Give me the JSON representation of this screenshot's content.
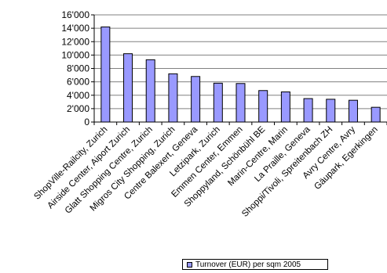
{
  "chart_data": {
    "type": "bar",
    "categories": [
      "ShopVille-Railcity, Zurich",
      "Airside Center, Aiport Zurich",
      "Glatt Shopping Centre, Zurich",
      "Migros City Shopping, Zurich",
      "Centre Balexert, Geneva",
      "Letzipark, Zurich",
      "Emmen Center, Emmen",
      "Shoppyland, Schönbühl BE",
      "Marin-Centre, Marin",
      "La Praille, Geneva",
      "Shoppi/Tivoli, Spreitenbach ZH",
      "Avry Centre, Avry",
      "Gäupark, Egerkingen"
    ],
    "series": [
      {
        "name": "Turnover (EUR) per sqm 2005",
        "values": [
          14200,
          10200,
          9300,
          7200,
          6800,
          5800,
          5750,
          4700,
          4500,
          3500,
          3400,
          3250,
          2200
        ]
      }
    ],
    "yticks": [
      "0",
      "2'000",
      "4'000",
      "6'000",
      "8'000",
      "10'000",
      "12'000",
      "14'000",
      "16'000"
    ],
    "ylim": [
      0,
      16000
    ],
    "ystep": 2000,
    "colors": {
      "bar_fill": "#9999ff",
      "bar_stroke": "#000000",
      "grid": "#808080",
      "axis": "#000000"
    },
    "grid": true,
    "legend_position": "bottom-right"
  }
}
